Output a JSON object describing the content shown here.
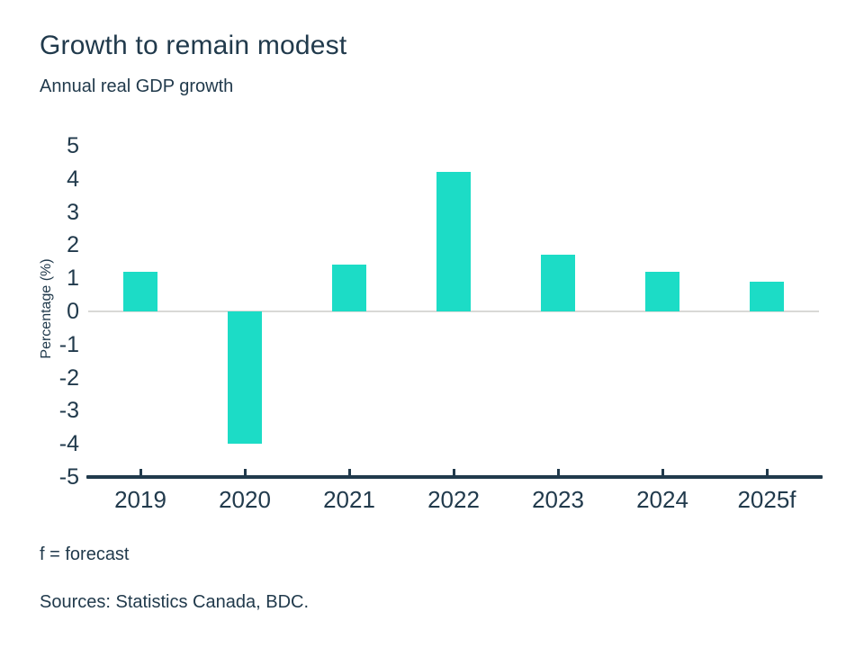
{
  "chart_data": {
    "type": "bar",
    "title": "Growth to remain modest",
    "subtitle": "Annual real GDP growth",
    "categories": [
      "2019",
      "2020",
      "2021",
      "2022",
      "2023",
      "2024",
      "2025f"
    ],
    "values": [
      1.2,
      -4.0,
      1.4,
      4.2,
      1.7,
      1.2,
      0.9
    ],
    "xlabel": "",
    "ylabel": "Percentage (%)",
    "ylim": [
      -5,
      5
    ],
    "yticks": [
      5,
      4,
      3,
      2,
      1,
      0,
      -1,
      -2,
      -3,
      -4,
      -5
    ],
    "grid": "zero-baseline-only",
    "legend": "none",
    "colors": {
      "bar": "#1cdcc6",
      "text": "#213a4c",
      "axis": "#213a4c",
      "zero_line": "#d9d9d6",
      "background": "#ffffff"
    }
  },
  "footer": {
    "note": "f = forecast",
    "sources": "Sources: Statistics Canada, BDC."
  }
}
